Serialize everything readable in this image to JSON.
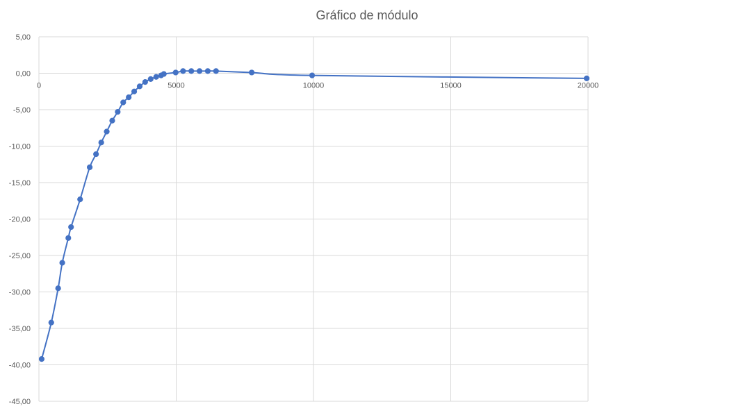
{
  "chart_data": {
    "type": "scatter",
    "title": "Gráfico de módulo",
    "xlabel": "",
    "ylabel": "",
    "xlim": [
      0,
      20000
    ],
    "ylim": [
      -45,
      5
    ],
    "x_ticks": [
      "0",
      "5000",
      "10000",
      "15000",
      "20000"
    ],
    "y_ticks": [
      "5,00",
      "0,00",
      "-5,00",
      "-10,00",
      "-15,00",
      "-20,00",
      "-25,00",
      "-30,00",
      "-35,00",
      "-40,00",
      "-45,00"
    ],
    "grid": true,
    "legend": "none",
    "series_color": "#4472c4",
    "series": [
      {
        "x": [
          100,
          450,
          700,
          850,
          1070,
          1170,
          1500,
          1850,
          2080,
          2270,
          2470,
          2670,
          2870,
          3070,
          3270,
          3470,
          3670,
          3870,
          4070,
          4270,
          4450,
          4550,
          4980,
          5250,
          5550,
          5850,
          6150,
          6450,
          7750,
          9950,
          19950
        ],
        "y": [
          -39.2,
          -34.2,
          -29.5,
          -26.0,
          -22.6,
          -21.1,
          -17.3,
          -12.9,
          -11.1,
          -9.5,
          -8.0,
          -6.5,
          -5.3,
          -4.0,
          -3.3,
          -2.5,
          -1.8,
          -1.2,
          -0.8,
          -0.5,
          -0.3,
          -0.1,
          0.1,
          0.3,
          0.3,
          0.3,
          0.3,
          0.3,
          0.1,
          -0.3,
          -0.7
        ]
      }
    ]
  }
}
